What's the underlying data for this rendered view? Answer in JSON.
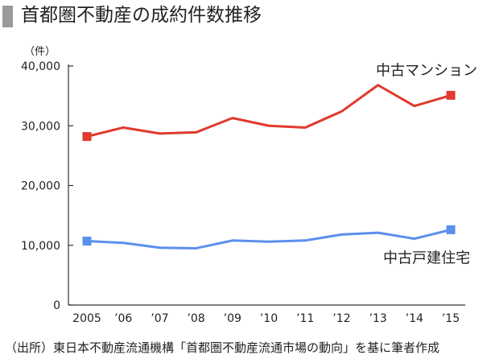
{
  "title": "首都圏不動産の成約件数推移",
  "source": "（出所）東日本不動産流通機構「首都圏不動産流通市場の動向」を基に筆者作成",
  "chart_data": {
    "type": "line",
    "title": "首都圏不動産の成約件数推移",
    "ylabel": "（件）",
    "xlabel": "",
    "categories": [
      "2005",
      "’06",
      "’07",
      "’08",
      "’09",
      "’10",
      "’11",
      "’12",
      "’13",
      "’14",
      "’15"
    ],
    "ylim": [
      0,
      40000
    ],
    "yticks": [
      0,
      10000,
      20000,
      30000,
      40000
    ],
    "ytick_labels": [
      "0",
      "10,000",
      "20,000",
      "30,000",
      "40,000"
    ],
    "grid": false,
    "series": [
      {
        "name": "中古マンション",
        "color": "#e03a2c",
        "values": [
          28200,
          29700,
          28700,
          28900,
          31300,
          30000,
          29700,
          32400,
          36800,
          33300,
          35100
        ]
      },
      {
        "name": "中古戸建住宅",
        "color": "#5b8fee",
        "values": [
          10700,
          10400,
          9600,
          9500,
          10800,
          10600,
          10800,
          11800,
          12100,
          11100,
          12600
        ]
      }
    ]
  }
}
